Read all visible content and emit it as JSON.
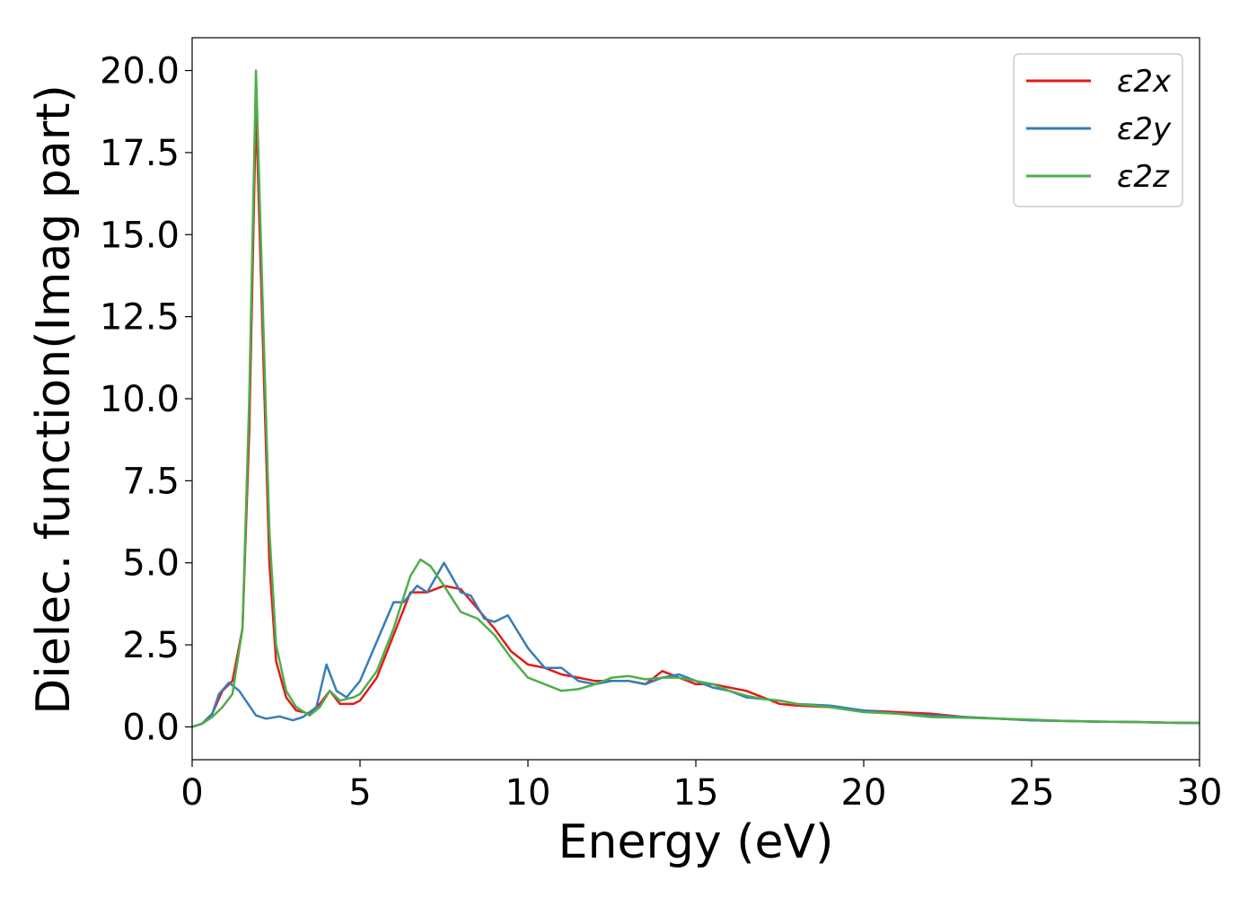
{
  "chart_data": {
    "type": "line",
    "title": "",
    "xlabel": "Energy (eV)",
    "ylabel": "Dielec. function(Imag part)",
    "xlim": [
      0,
      30
    ],
    "ylim": [
      -1,
      21
    ],
    "x_ticks": [
      0,
      5,
      10,
      15,
      20,
      25,
      30
    ],
    "x_tick_labels": [
      "0",
      "5",
      "10",
      "15",
      "20",
      "25",
      "30"
    ],
    "y_ticks": [
      0,
      2.5,
      5,
      7.5,
      10,
      12.5,
      15,
      17.5,
      20
    ],
    "y_tick_labels": [
      "0.0",
      "2.5",
      "5.0",
      "7.5",
      "10.0",
      "12.5",
      "15.0",
      "17.5",
      "20.0"
    ],
    "grid": false,
    "legend_position": "top-right",
    "series": [
      {
        "name": "ε2x",
        "color": "#e41a1c",
        "points": [
          [
            0,
            0
          ],
          [
            0.3,
            0.1
          ],
          [
            0.6,
            0.4
          ],
          [
            0.9,
            1.1
          ],
          [
            1.2,
            1.4
          ],
          [
            1.5,
            3.0
          ],
          [
            1.7,
            9.0
          ],
          [
            1.9,
            18.9
          ],
          [
            2.1,
            12.0
          ],
          [
            2.3,
            5.0
          ],
          [
            2.5,
            2.0
          ],
          [
            2.8,
            0.9
          ],
          [
            3.1,
            0.5
          ],
          [
            3.5,
            0.4
          ],
          [
            3.8,
            0.7
          ],
          [
            4.1,
            1.1
          ],
          [
            4.4,
            0.7
          ],
          [
            4.8,
            0.7
          ],
          [
            5.0,
            0.8
          ],
          [
            5.5,
            1.5
          ],
          [
            6.0,
            2.8
          ],
          [
            6.5,
            4.1
          ],
          [
            7.0,
            4.1
          ],
          [
            7.5,
            4.3
          ],
          [
            8.0,
            4.2
          ],
          [
            8.5,
            3.6
          ],
          [
            9.0,
            3.0
          ],
          [
            9.5,
            2.3
          ],
          [
            10.0,
            1.9
          ],
          [
            10.5,
            1.8
          ],
          [
            11.0,
            1.6
          ],
          [
            11.5,
            1.5
          ],
          [
            12.0,
            1.4
          ],
          [
            12.5,
            1.4
          ],
          [
            13.0,
            1.4
          ],
          [
            13.5,
            1.3
          ],
          [
            14.0,
            1.7
          ],
          [
            14.5,
            1.5
          ],
          [
            15.0,
            1.3
          ],
          [
            15.5,
            1.3
          ],
          [
            16.0,
            1.2
          ],
          [
            16.5,
            1.1
          ],
          [
            17.0,
            0.9
          ],
          [
            17.5,
            0.7
          ],
          [
            18.0,
            0.65
          ],
          [
            19.0,
            0.6
          ],
          [
            20.0,
            0.5
          ],
          [
            21.0,
            0.45
          ],
          [
            22.0,
            0.4
          ],
          [
            23.0,
            0.3
          ],
          [
            24.0,
            0.25
          ],
          [
            25.0,
            0.2
          ],
          [
            26.0,
            0.18
          ],
          [
            27.0,
            0.16
          ],
          [
            28.0,
            0.15
          ],
          [
            29.0,
            0.13
          ],
          [
            30.0,
            0.12
          ]
        ]
      },
      {
        "name": "ε2y",
        "color": "#377eb8",
        "points": [
          [
            0,
            0
          ],
          [
            0.3,
            0.1
          ],
          [
            0.6,
            0.4
          ],
          [
            0.8,
            1.0
          ],
          [
            1.1,
            1.35
          ],
          [
            1.4,
            1.1
          ],
          [
            1.6,
            0.8
          ],
          [
            1.9,
            0.35
          ],
          [
            2.2,
            0.25
          ],
          [
            2.6,
            0.32
          ],
          [
            3.0,
            0.2
          ],
          [
            3.3,
            0.3
          ],
          [
            3.7,
            0.6
          ],
          [
            4.0,
            1.9
          ],
          [
            4.3,
            1.1
          ],
          [
            4.6,
            0.9
          ],
          [
            5.0,
            1.4
          ],
          [
            5.5,
            2.6
          ],
          [
            6.0,
            3.8
          ],
          [
            6.3,
            3.8
          ],
          [
            6.7,
            4.3
          ],
          [
            7.0,
            4.1
          ],
          [
            7.5,
            5.0
          ],
          [
            8.0,
            4.1
          ],
          [
            8.3,
            4.0
          ],
          [
            8.7,
            3.3
          ],
          [
            9.0,
            3.2
          ],
          [
            9.4,
            3.4
          ],
          [
            10.0,
            2.4
          ],
          [
            10.5,
            1.8
          ],
          [
            11.0,
            1.8
          ],
          [
            11.5,
            1.4
          ],
          [
            12.0,
            1.3
          ],
          [
            12.5,
            1.4
          ],
          [
            13.0,
            1.4
          ],
          [
            13.5,
            1.3
          ],
          [
            14.0,
            1.5
          ],
          [
            14.5,
            1.6
          ],
          [
            15.0,
            1.4
          ],
          [
            15.5,
            1.2
          ],
          [
            16.0,
            1.1
          ],
          [
            16.5,
            0.9
          ],
          [
            17.0,
            0.85
          ],
          [
            17.5,
            0.8
          ],
          [
            18.0,
            0.7
          ],
          [
            19.0,
            0.65
          ],
          [
            20.0,
            0.5
          ],
          [
            21.0,
            0.4
          ],
          [
            22.0,
            0.35
          ],
          [
            23.0,
            0.3
          ],
          [
            24.0,
            0.25
          ],
          [
            25.0,
            0.2
          ],
          [
            26.0,
            0.18
          ],
          [
            27.0,
            0.16
          ],
          [
            28.0,
            0.15
          ],
          [
            29.0,
            0.13
          ],
          [
            30.0,
            0.12
          ]
        ]
      },
      {
        "name": "ε2z",
        "color": "#4daf4a",
        "points": [
          [
            0,
            0
          ],
          [
            0.3,
            0.1
          ],
          [
            0.6,
            0.3
          ],
          [
            0.9,
            0.6
          ],
          [
            1.2,
            1.0
          ],
          [
            1.5,
            3.0
          ],
          [
            1.7,
            10.0
          ],
          [
            1.9,
            20.0
          ],
          [
            2.1,
            13.0
          ],
          [
            2.3,
            6.0
          ],
          [
            2.5,
            2.5
          ],
          [
            2.8,
            1.1
          ],
          [
            3.1,
            0.6
          ],
          [
            3.5,
            0.35
          ],
          [
            3.8,
            0.6
          ],
          [
            4.1,
            1.1
          ],
          [
            4.4,
            0.8
          ],
          [
            4.8,
            0.9
          ],
          [
            5.0,
            1.0
          ],
          [
            5.5,
            1.7
          ],
          [
            6.0,
            3.0
          ],
          [
            6.5,
            4.6
          ],
          [
            6.8,
            5.1
          ],
          [
            7.1,
            4.9
          ],
          [
            7.5,
            4.3
          ],
          [
            8.0,
            3.5
          ],
          [
            8.5,
            3.3
          ],
          [
            9.0,
            2.8
          ],
          [
            9.5,
            2.1
          ],
          [
            10.0,
            1.5
          ],
          [
            10.5,
            1.3
          ],
          [
            11.0,
            1.1
          ],
          [
            11.5,
            1.15
          ],
          [
            12.0,
            1.3
          ],
          [
            12.5,
            1.5
          ],
          [
            13.0,
            1.55
          ],
          [
            13.5,
            1.45
          ],
          [
            14.0,
            1.5
          ],
          [
            14.5,
            1.5
          ],
          [
            15.0,
            1.4
          ],
          [
            15.5,
            1.3
          ],
          [
            16.0,
            1.1
          ],
          [
            16.5,
            0.95
          ],
          [
            17.0,
            0.85
          ],
          [
            17.5,
            0.8
          ],
          [
            18.0,
            0.7
          ],
          [
            19.0,
            0.6
          ],
          [
            20.0,
            0.45
          ],
          [
            21.0,
            0.4
          ],
          [
            22.0,
            0.3
          ],
          [
            23.0,
            0.28
          ],
          [
            24.0,
            0.25
          ],
          [
            25.0,
            0.22
          ],
          [
            26.0,
            0.18
          ],
          [
            27.0,
            0.16
          ],
          [
            28.0,
            0.15
          ],
          [
            29.0,
            0.13
          ],
          [
            30.0,
            0.12
          ]
        ]
      }
    ]
  }
}
